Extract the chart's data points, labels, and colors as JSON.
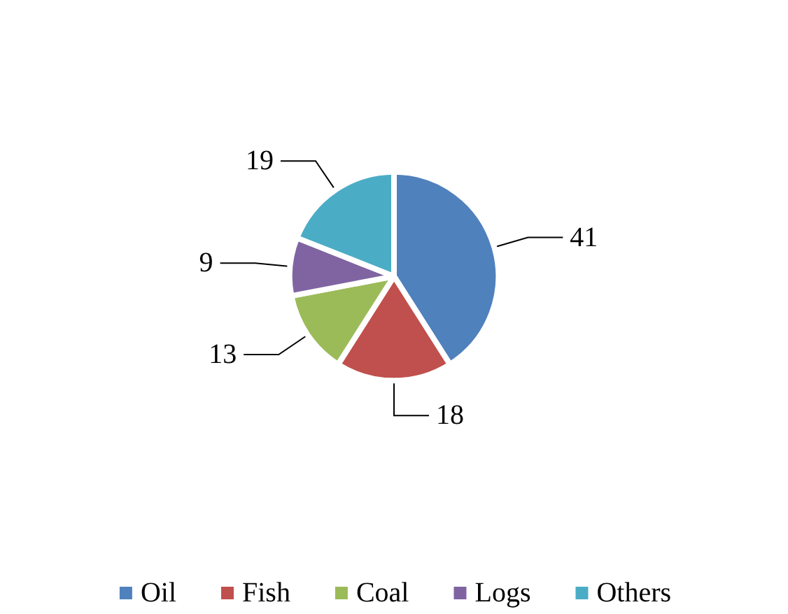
{
  "chart_data": {
    "type": "pie",
    "categories": [
      "Oil",
      "Fish",
      "Coal",
      "Logs",
      "Others"
    ],
    "values": [
      41,
      18,
      13,
      9,
      19
    ],
    "colors": [
      "#4f81bd",
      "#c0504d",
      "#9bbb59",
      "#8064a2",
      "#4bacc6"
    ],
    "data_labels": true,
    "legend": "bottom"
  }
}
